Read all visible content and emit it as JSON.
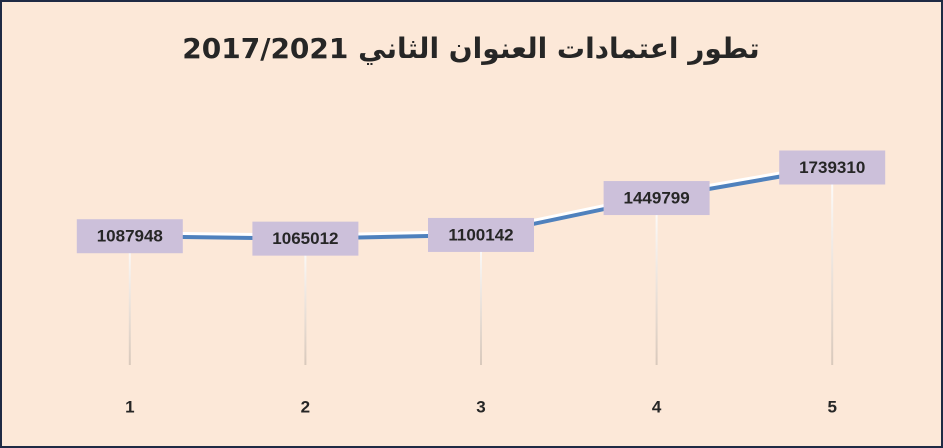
{
  "chart_data": {
    "type": "line",
    "title": "تطور اعتمادات العنوان الثاني 2017/2021",
    "categories": [
      "1",
      "2",
      "3",
      "4",
      "5"
    ],
    "values": [
      1087948,
      1065012,
      1100142,
      1449799,
      1739310
    ],
    "color": "#4f81bd",
    "ylim": [
      0,
      2000000
    ],
    "grid": false
  }
}
